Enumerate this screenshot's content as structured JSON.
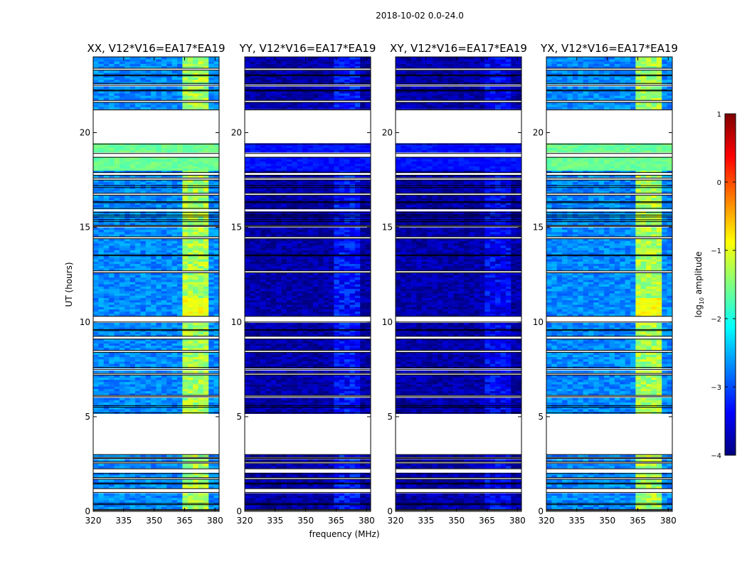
{
  "chart_data": {
    "type": "heatmap",
    "title": "2018-10-02 0.0-24.0",
    "xlabel": "frequency (MHz)",
    "ylabel": "UT (hours)",
    "xlim": [
      320,
      382
    ],
    "ylim": [
      0,
      24
    ],
    "xticks": [
      "320",
      "335",
      "350",
      "365",
      "380"
    ],
    "xtick_values": [
      320,
      335,
      350,
      365,
      380
    ],
    "yticks": [
      "0",
      "5",
      "10",
      "15",
      "20"
    ],
    "ytick_values": [
      0,
      5,
      10,
      15,
      20
    ],
    "colorbar": {
      "label": "log10 amplitude",
      "label_base": "log",
      "label_sub": "10",
      "label_rest": " amplitude",
      "range": [
        -4,
        1
      ],
      "ticks": [
        "1",
        "0",
        "−1",
        "−2",
        "−3",
        "−4"
      ],
      "tick_values": [
        1,
        0,
        -1,
        -2,
        -3,
        -4
      ],
      "colormap": "jet",
      "colors": [
        "#00007f",
        "#0000ff",
        "#007fff",
        "#00ffff",
        "#7fff7f",
        "#ffff00",
        "#ff7f00",
        "#ff0000",
        "#7f0000"
      ]
    },
    "panels": [
      {
        "title": "XX, V12*V16=EA17*EA19",
        "base_level": -2.7,
        "rfi_level": -1.3,
        "rfi_range_mhz": [
          363,
          378
        ]
      },
      {
        "title": "YY, V12*V16=EA17*EA19",
        "base_level": -3.8,
        "rfi_level": -3.3,
        "rfi_range_mhz": [
          363,
          378
        ]
      },
      {
        "title": "XY, V12*V16=EA17*EA19",
        "base_level": -3.8,
        "rfi_level": -3.4,
        "rfi_range_mhz": [
          363,
          378
        ]
      },
      {
        "title": "YX, V12*V16=EA17*EA19",
        "base_level": -2.7,
        "rfi_level": -1.3,
        "rfi_range_mhz": [
          363,
          378
        ]
      }
    ],
    "flagged_time_ranges_hours": [
      [
        0.05,
        0.1
      ],
      [
        0.35,
        0.42
      ],
      [
        1.0,
        1.2
      ],
      [
        1.45,
        1.5
      ],
      [
        1.7,
        1.78
      ],
      [
        2.0,
        2.25
      ],
      [
        2.55,
        2.62
      ],
      [
        2.8,
        2.85
      ],
      [
        3.0,
        5.2
      ],
      [
        5.5,
        5.58
      ],
      [
        6.05,
        6.12
      ],
      [
        7.2,
        7.28
      ],
      [
        7.5,
        7.6
      ],
      [
        8.4,
        8.5
      ],
      [
        9.1,
        9.25
      ],
      [
        9.55,
        9.6
      ],
      [
        10.0,
        10.3
      ],
      [
        12.6,
        12.7
      ],
      [
        13.5,
        13.55
      ],
      [
        14.4,
        14.5
      ],
      [
        15.05,
        15.1
      ],
      [
        15.3,
        15.4
      ],
      [
        15.55,
        15.65
      ],
      [
        15.8,
        16.0
      ],
      [
        16.3,
        16.35
      ],
      [
        16.7,
        16.8
      ],
      [
        17.1,
        17.2
      ],
      [
        17.5,
        17.6
      ],
      [
        17.75,
        17.9
      ],
      [
        18.7,
        18.9
      ],
      [
        19.4,
        21.2
      ],
      [
        21.6,
        21.7
      ],
      [
        22.2,
        22.25
      ],
      [
        22.5,
        22.6
      ],
      [
        23.0,
        23.05
      ],
      [
        23.3,
        23.4
      ]
    ]
  }
}
